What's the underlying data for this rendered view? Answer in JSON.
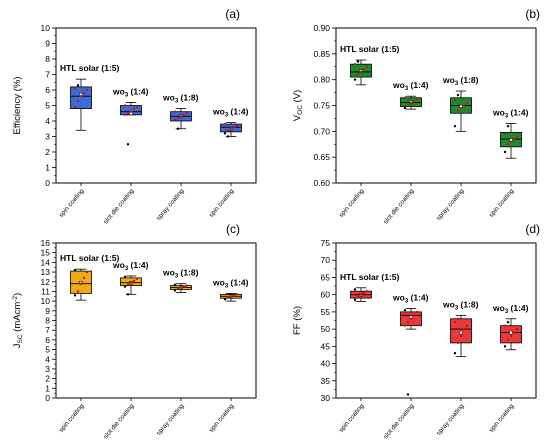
{
  "figure": {
    "panels": [
      {
        "id": "a",
        "panel_label": "(a)",
        "ylabel": "Efficiency (%)",
        "ylabel_sub": "",
        "ylabel_tail": "",
        "color": "#3d6ad6",
        "ylim": [
          0,
          10
        ],
        "ticks": [
          0,
          1,
          2,
          3,
          4,
          5,
          6,
          7,
          8,
          9,
          10
        ],
        "tick_fmt": 0
      },
      {
        "id": "b",
        "panel_label": "(b)",
        "ylabel": "V",
        "ylabel_sub": "OC",
        "ylabel_tail": " (V)",
        "color": "#1e8b30",
        "ylim": [
          0.6,
          0.9
        ],
        "ticks": [
          0.6,
          0.65,
          0.7,
          0.75,
          0.8,
          0.85,
          0.9
        ],
        "tick_fmt": 2
      },
      {
        "id": "c",
        "panel_label": "(c)",
        "ylabel": "J",
        "ylabel_sub": "SC",
        "ylabel_tail": " (mAcm",
        "ylabel_sup": "-2",
        "ylabel_end": ")",
        "color": "#f0aa18",
        "ylim": [
          0,
          16
        ],
        "ticks": [
          0,
          1,
          2,
          3,
          4,
          5,
          6,
          7,
          8,
          9,
          10,
          11,
          12,
          13,
          14,
          15,
          16
        ],
        "tick_fmt": 0
      },
      {
        "id": "d",
        "panel_label": "(d)",
        "ylabel": "FF (%)",
        "ylabel_sub": "",
        "ylabel_tail": "",
        "color": "#e83a3a",
        "ylim": [
          30,
          75
        ],
        "ticks": [
          30,
          35,
          40,
          45,
          50,
          55,
          60,
          65,
          70,
          75
        ],
        "tick_fmt": 0
      }
    ],
    "categories": [
      "spin coating",
      "slot die coating",
      "spray coating",
      "spin coating"
    ],
    "group_labels": [
      {
        "text": "HTL solar (1:5)",
        "plain": true
      },
      {
        "prefix": "wo",
        "sub": "3",
        "suffix": " (1:4)"
      },
      {
        "prefix": "wo",
        "sub": "3",
        "suffix": " (1:8)"
      },
      {
        "prefix": "wo",
        "sub": "3",
        "suffix": " (1:4)"
      }
    ]
  },
  "chart_data": [
    {
      "type": "box",
      "panel": "(a)",
      "ylabel": "Efficiency (%)",
      "ylim": [
        0,
        10
      ],
      "categories": [
        "spin coating",
        "slot die coating",
        "spray coating",
        "spin coating"
      ],
      "boxes": [
        {
          "group": "HTL solar (1:5)",
          "whisker_low": 3.4,
          "q1": 4.8,
          "median": 5.6,
          "mean": 5.7,
          "q3": 6.2,
          "whisker_high": 6.7,
          "points": [
            4.9,
            5.3,
            5.6,
            5.8,
            6.0,
            6.1,
            6.3
          ]
        },
        {
          "group": "wo3 (1:4)",
          "whisker_low": 4.4,
          "q1": 4.4,
          "median": 4.6,
          "mean": 4.5,
          "q3": 5.0,
          "whisker_high": 5.2,
          "points": [
            4.4,
            4.5,
            4.6,
            4.8,
            4.9,
            5.0,
            2.5
          ]
        },
        {
          "group": "wo3 (1:8)",
          "whisker_low": 3.5,
          "q1": 4.0,
          "median": 4.3,
          "mean": 4.3,
          "q3": 4.6,
          "whisker_high": 4.8,
          "points": [
            4.1,
            4.2,
            4.3,
            4.4,
            4.5,
            4.6,
            3.5
          ]
        },
        {
          "group": "wo3 (1:4)",
          "whisker_low": 3.0,
          "q1": 3.3,
          "median": 3.6,
          "mean": 3.5,
          "q3": 3.8,
          "whisker_high": 3.9,
          "points": [
            3.2,
            3.4,
            3.5,
            3.6,
            3.7,
            3.8,
            3.0
          ]
        }
      ]
    },
    {
      "type": "box",
      "panel": "(b)",
      "ylabel": "VOC (V)",
      "ylim": [
        0.6,
        0.9
      ],
      "categories": [
        "spin coating",
        "slot die coating",
        "spray coating",
        "spin coating"
      ],
      "boxes": [
        {
          "group": "HTL solar (1:5)",
          "whisker_low": 0.79,
          "q1": 0.805,
          "median": 0.815,
          "mean": 0.816,
          "q3": 0.83,
          "whisker_high": 0.838,
          "points": [
            0.8,
            0.81,
            0.815,
            0.82,
            0.825,
            0.83,
            0.835
          ]
        },
        {
          "group": "wo3 (1:4)",
          "whisker_low": 0.743,
          "q1": 0.748,
          "median": 0.756,
          "mean": 0.756,
          "q3": 0.765,
          "whisker_high": 0.768,
          "points": [
            0.745,
            0.75,
            0.755,
            0.758,
            0.762,
            0.765
          ]
        },
        {
          "group": "wo3 (1:8)",
          "whisker_low": 0.7,
          "q1": 0.735,
          "median": 0.75,
          "mean": 0.748,
          "q3": 0.765,
          "whisker_high": 0.778,
          "points": [
            0.71,
            0.74,
            0.745,
            0.75,
            0.755,
            0.76,
            0.77
          ]
        },
        {
          "group": "wo3 (1:4)",
          "whisker_low": 0.648,
          "q1": 0.67,
          "median": 0.685,
          "mean": 0.683,
          "q3": 0.698,
          "whisker_high": 0.715,
          "points": [
            0.66,
            0.675,
            0.68,
            0.685,
            0.69,
            0.695,
            0.71
          ]
        }
      ]
    },
    {
      "type": "box",
      "panel": "(c)",
      "ylabel": "JSC (mAcm-2)",
      "ylim": [
        0,
        16
      ],
      "categories": [
        "spin coating",
        "slot die coating",
        "spray coating",
        "spin coating"
      ],
      "boxes": [
        {
          "group": "HTL solar (1:5)",
          "whisker_low": 10.1,
          "q1": 10.8,
          "median": 11.8,
          "mean": 11.9,
          "q3": 13.1,
          "whisker_high": 13.3,
          "points": [
            10.6,
            11.0,
            11.8,
            12.4,
            13.0,
            13.2
          ]
        },
        {
          "group": "wo3 (1:4)",
          "whisker_low": 10.7,
          "q1": 11.6,
          "median": 11.9,
          "mean": 11.9,
          "q3": 12.4,
          "whisker_high": 12.6,
          "points": [
            11.5,
            11.7,
            11.9,
            12.1,
            12.3,
            12.5,
            10.7
          ]
        },
        {
          "group": "wo3 (1:8)",
          "whisker_low": 10.9,
          "q1": 11.2,
          "median": 11.4,
          "mean": 11.4,
          "q3": 11.6,
          "whisker_high": 11.8,
          "points": [
            11.1,
            11.3,
            11.4,
            11.5,
            11.6,
            11.7
          ]
        },
        {
          "group": "wo3 (1:4)",
          "whisker_low": 10.0,
          "q1": 10.3,
          "median": 10.5,
          "mean": 10.5,
          "q3": 10.7,
          "whisker_high": 10.8,
          "points": [
            10.2,
            10.4,
            10.5,
            10.6,
            10.7
          ]
        }
      ]
    },
    {
      "type": "box",
      "panel": "(d)",
      "ylabel": "FF (%)",
      "ylim": [
        30,
        75
      ],
      "categories": [
        "spin coating",
        "slot die coating",
        "spray coating",
        "spin coating"
      ],
      "boxes": [
        {
          "group": "HTL solar (1:5)",
          "whisker_low": 58,
          "q1": 59,
          "median": 60,
          "mean": 60,
          "q3": 61,
          "whisker_high": 62,
          "points": [
            58.5,
            59.5,
            60,
            60.5,
            61,
            61.5
          ]
        },
        {
          "group": "wo3 (1:4)",
          "whisker_low": 50,
          "q1": 51,
          "median": 54,
          "mean": 53.5,
          "q3": 55,
          "whisker_high": 56,
          "points": [
            51,
            52,
            53,
            54,
            55,
            55.5,
            31
          ]
        },
        {
          "group": "wo3 (1:8)",
          "whisker_low": 42,
          "q1": 46,
          "median": 50,
          "mean": 49,
          "q3": 53,
          "whisker_high": 54,
          "points": [
            43,
            46,
            48,
            50,
            51,
            52,
            53
          ]
        },
        {
          "group": "wo3 (1:4)",
          "whisker_low": 44,
          "q1": 46,
          "median": 49,
          "mean": 49,
          "q3": 51,
          "whisker_high": 53,
          "points": [
            45,
            47,
            48,
            49,
            50,
            51,
            52
          ]
        }
      ]
    }
  ]
}
